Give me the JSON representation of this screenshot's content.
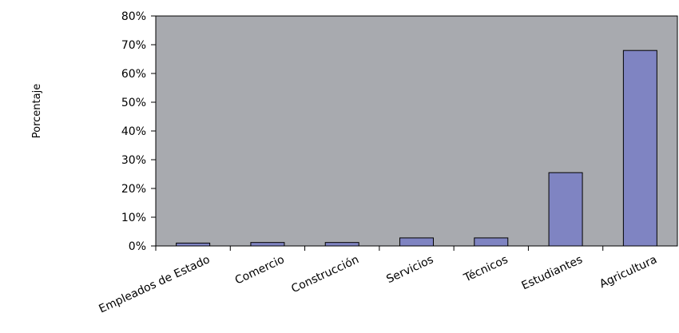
{
  "chart_data": {
    "type": "bar",
    "title": "",
    "xlabel": "",
    "ylabel": "Porcentaje",
    "categories": [
      "Empleados de Estado",
      "Comercio",
      "Construcción",
      "Servicios",
      "Técnicos",
      "Estudiantes",
      "Agricultura"
    ],
    "values": [
      1,
      1.2,
      1.2,
      2.8,
      2.8,
      25.5,
      68
    ],
    "ylim": [
      0,
      80
    ],
    "yticks": [
      "0%",
      "10%",
      "20%",
      "30%",
      "40%",
      "50%",
      "60%",
      "70%",
      "80%"
    ],
    "grid": false,
    "legend": "none",
    "colors": {
      "plot_background": "#a8aaaf",
      "bar_fill": "#7f84c2",
      "bar_stroke": "#000000"
    }
  }
}
